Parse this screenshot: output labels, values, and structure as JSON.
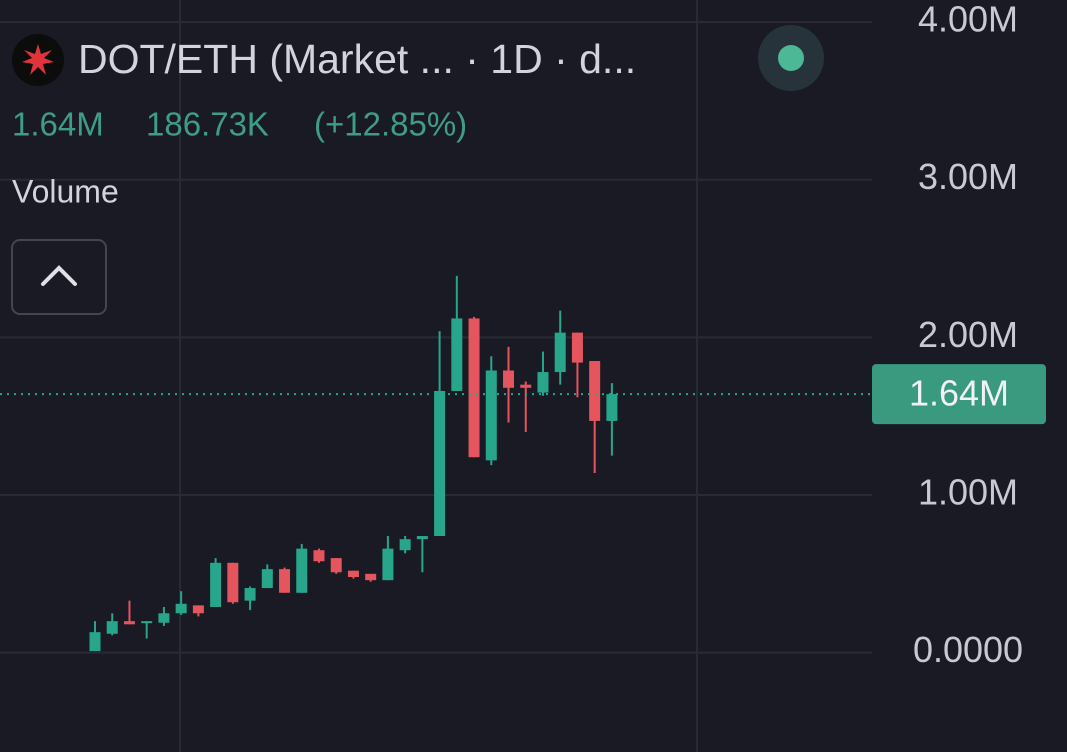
{
  "chart_data": {
    "type": "candlestick",
    "title": "DOT/ETH (Market ... · 1D · d...",
    "legend_values": [
      "1.64M",
      "186.73K",
      "(+12.85%)"
    ],
    "indicator": "Volume",
    "price_label": "1.64M",
    "up_color": "#27a68c",
    "down_color": "#e4555d",
    "ylim": [
      -0.63,
      4.14
    ],
    "yticks": [
      {
        "value": 0,
        "label": "0.0000"
      },
      {
        "value": 1,
        "label": "1.00M"
      },
      {
        "value": 2,
        "label": "2.00M"
      },
      {
        "value": 3,
        "label": "3.00M"
      },
      {
        "value": 4,
        "label": "4.00M"
      }
    ],
    "grid": true,
    "open": [
      0.01,
      0.12,
      0.2,
      0.19,
      0.19,
      0.25,
      0.3,
      0.29,
      0.57,
      0.33,
      0.41,
      0.53,
      0.38,
      0.65,
      0.6,
      0.52,
      0.5,
      0.46,
      0.65,
      0.72,
      0.74,
      1.66,
      2.12,
      1.22,
      1.79,
      1.7,
      1.65,
      1.78,
      2.03,
      1.85,
      1.47
    ],
    "high": [
      0.2,
      0.25,
      0.33,
      0.2,
      0.29,
      0.39,
      0.3,
      0.6,
      0.57,
      0.42,
      0.56,
      0.54,
      0.69,
      0.66,
      0.6,
      0.52,
      0.5,
      0.74,
      0.74,
      0.74,
      2.04,
      2.39,
      2.13,
      1.88,
      1.94,
      1.72,
      1.91,
      2.17,
      2.03,
      1.85,
      1.71
    ],
    "low": [
      0.01,
      0.11,
      0.18,
      0.09,
      0.17,
      0.24,
      0.23,
      0.29,
      0.31,
      0.27,
      0.41,
      0.38,
      0.38,
      0.57,
      0.5,
      0.47,
      0.45,
      0.46,
      0.63,
      0.51,
      0.74,
      1.66,
      1.24,
      1.19,
      1.46,
      1.4,
      1.63,
      1.7,
      1.62,
      1.14,
      1.25
    ],
    "close": [
      0.13,
      0.2,
      0.18,
      0.2,
      0.25,
      0.31,
      0.25,
      0.57,
      0.32,
      0.41,
      0.53,
      0.38,
      0.66,
      0.58,
      0.51,
      0.48,
      0.46,
      0.66,
      0.72,
      0.74,
      1.66,
      2.12,
      1.24,
      1.79,
      1.68,
      1.68,
      1.78,
      2.03,
      1.84,
      1.47,
      1.64
    ]
  }
}
